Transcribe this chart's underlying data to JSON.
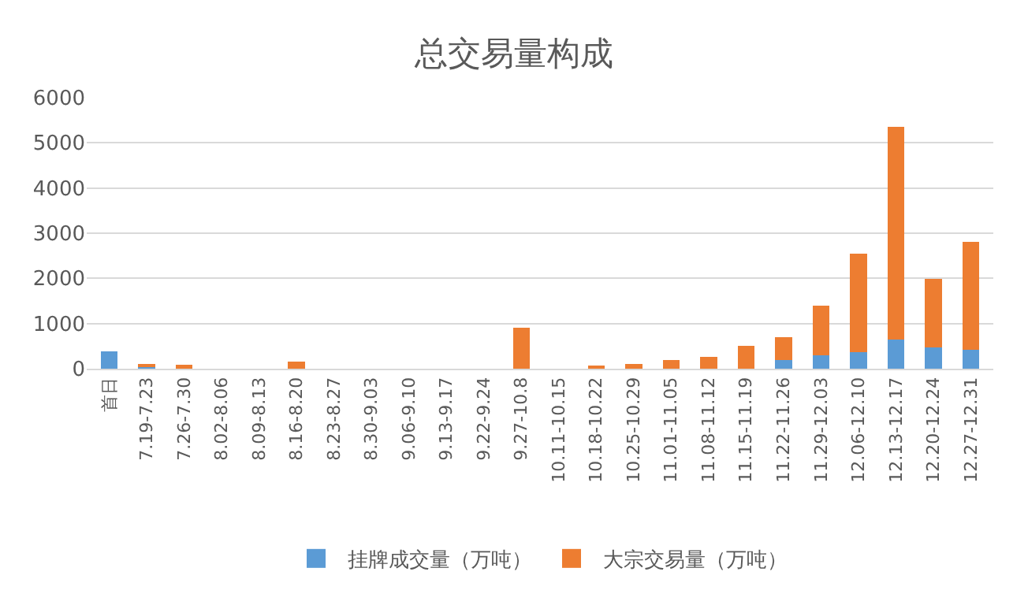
{
  "chart_data": {
    "type": "bar",
    "title": "总交易量构成",
    "stacked": true,
    "categories": [
      "首日",
      "7.19-7.23",
      "7.26-7.30",
      "8.02-8.06",
      "8.09-8.13",
      "8.16-8.20",
      "8.23-8.27",
      "8.30-9.03",
      "9.06-9.10",
      "9.13-9.17",
      "9.22-9.24",
      "9.27-10.8",
      "10.11-10.15",
      "10.18-10.22",
      "10.25-10.29",
      "11.01-11.05",
      "11.08-11.12",
      "11.15-11.19",
      "11.22-11.26",
      "11.29-12.03",
      "12.06-12.10",
      "12.13-12.17",
      "12.20-12.24",
      "12.27-12.31"
    ],
    "series": [
      {
        "name": "挂牌成交量（万吨）",
        "color": "#5b9bd5",
        "values": [
          380,
          30,
          0,
          0,
          0,
          0,
          0,
          0,
          0,
          0,
          0,
          0,
          0,
          0,
          0,
          0,
          0,
          0,
          200,
          300,
          370,
          650,
          470,
          420
        ]
      },
      {
        "name": "大宗交易量（万吨）",
        "color": "#ed7d31",
        "values": [
          0,
          70,
          90,
          0,
          0,
          150,
          0,
          0,
          0,
          0,
          0,
          900,
          0,
          60,
          100,
          190,
          270,
          510,
          490,
          1090,
          2180,
          4710,
          1520,
          2390
        ]
      }
    ],
    "ylim": [
      0,
      6000
    ],
    "yticks": [
      0,
      1000,
      2000,
      3000,
      4000,
      5000,
      6000
    ],
    "grid": "y",
    "legend": "bottom"
  }
}
